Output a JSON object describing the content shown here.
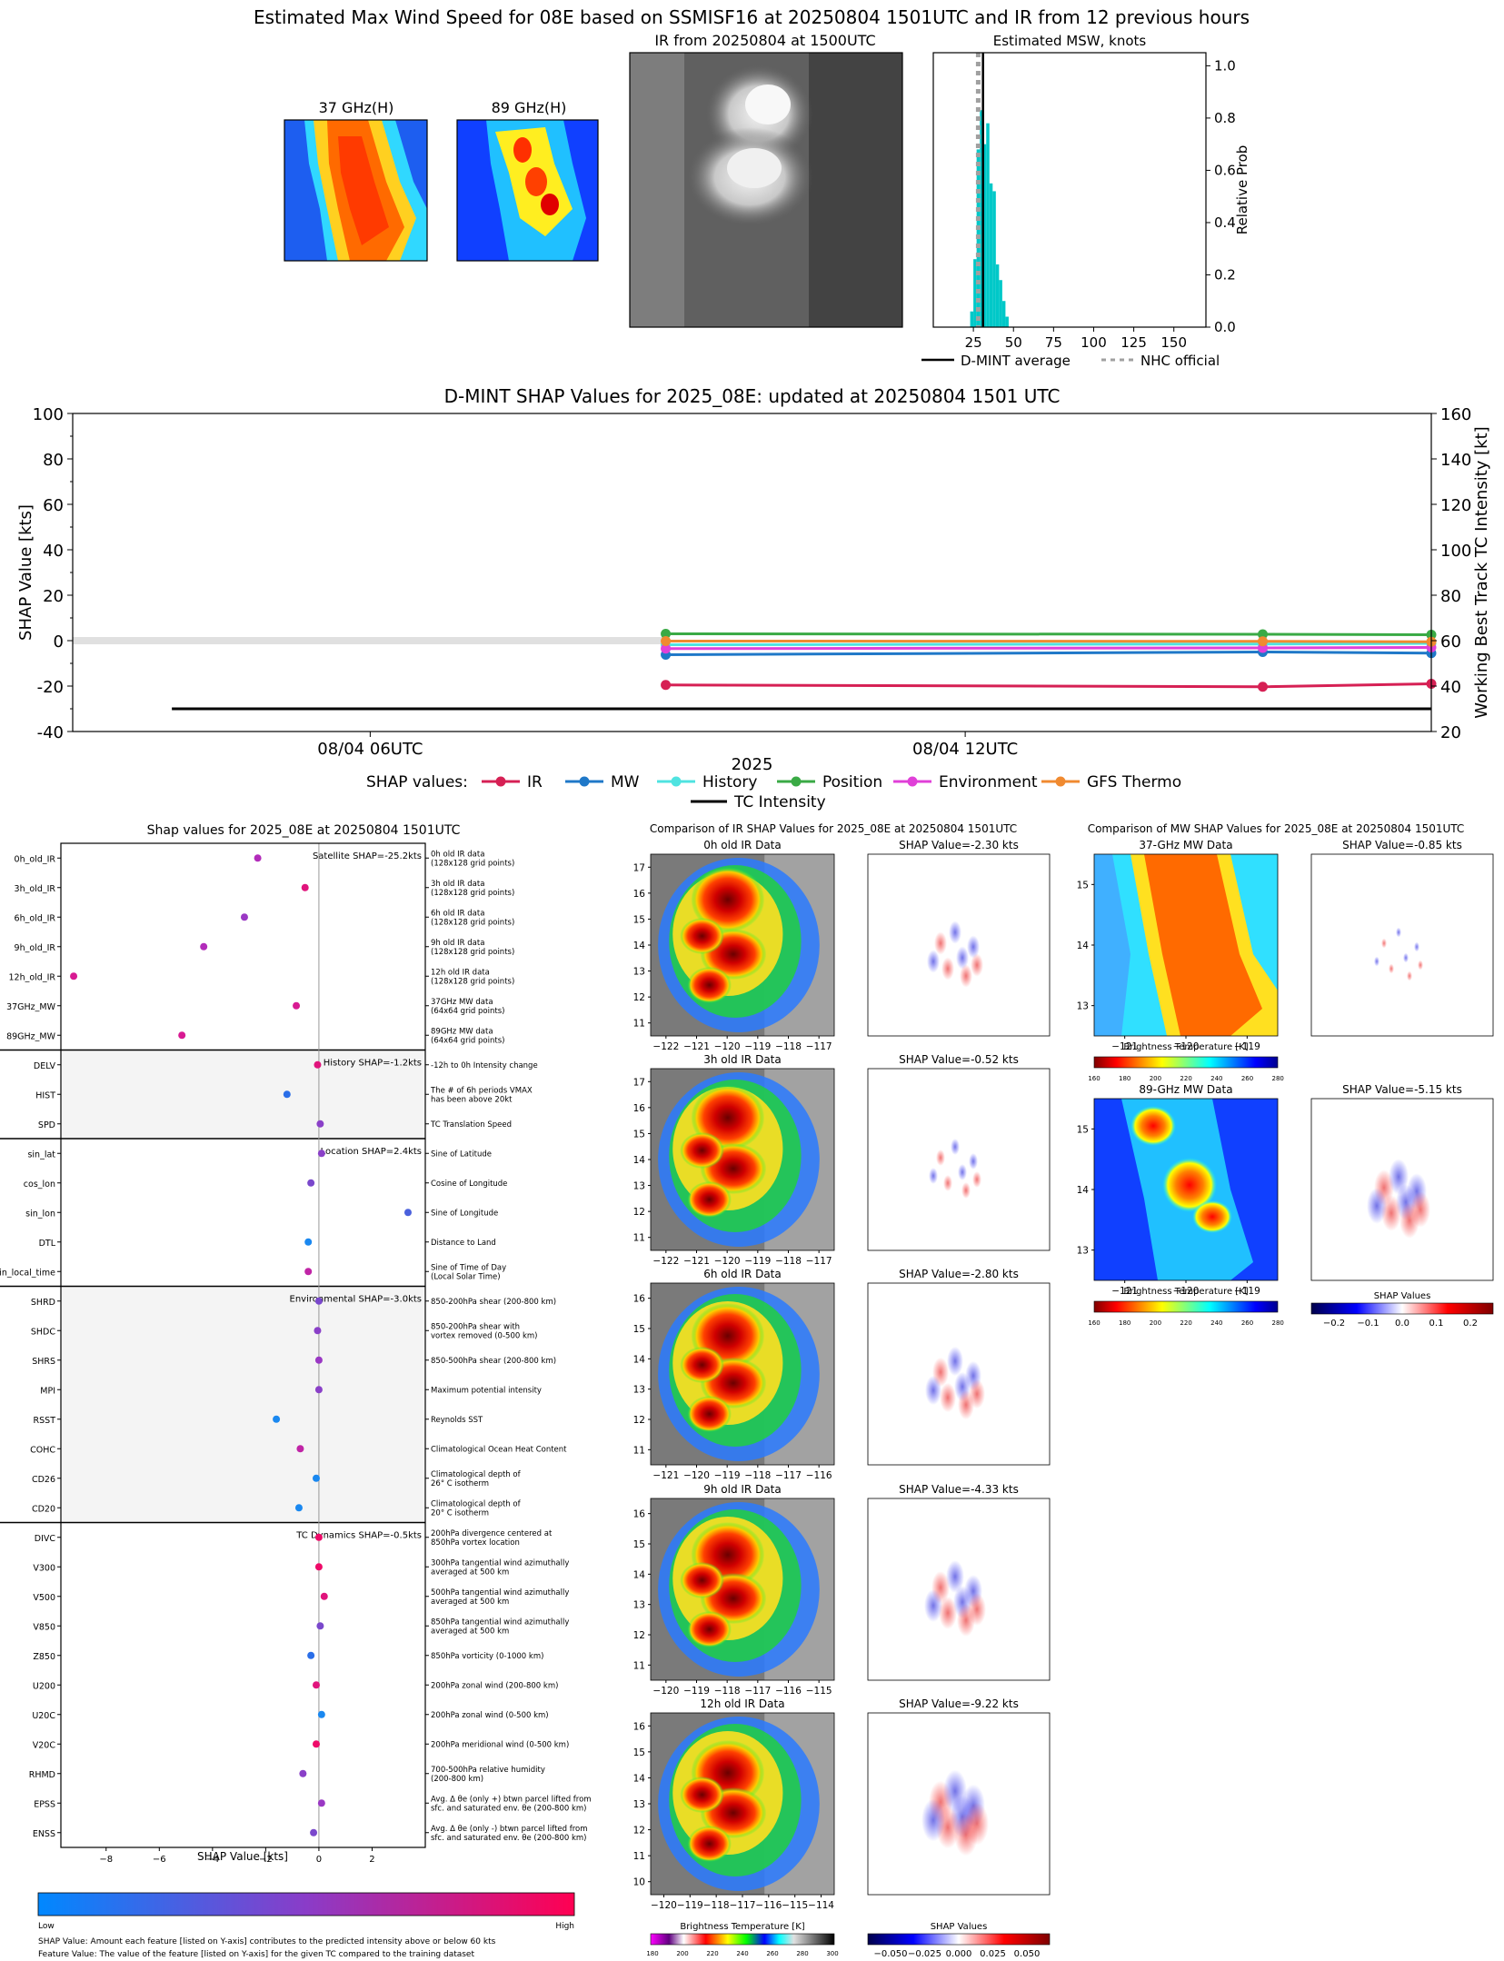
{
  "header": {
    "title": "Estimated Max Wind Speed for 08E based on SSMISF16 at 20250804 1501UTC and IR from 12 previous hours",
    "thumb_37_title": "37 GHz(H)",
    "thumb_89_title": "89 GHz(H)",
    "ir_title": "IR from 20250804 at 1500UTC",
    "hist_title": "Estimated MSW, knots",
    "hist_ylabel": "Relative Prob",
    "legend_dmint": "D-MINT average",
    "legend_nhc": "NHC official"
  },
  "colors": {
    "ir": "#d62054",
    "mw": "#1f78c8",
    "history": "#4fe3e0",
    "position": "#3aaa45",
    "environment": "#e040d8",
    "gfs_thermo": "#f08a30",
    "tc_intensity": "#000000",
    "hist_bar": "#00c8c8",
    "nhc": "#a0a0a0"
  },
  "chart_data": [
    {
      "id": "msw_histogram",
      "type": "bar",
      "title": "Estimated MSW, knots",
      "xlabel": "",
      "ylabel": "Relative Prob",
      "xlim": [
        0,
        170
      ],
      "ylim": [
        0,
        1.05
      ],
      "xticks": [
        25,
        50,
        75,
        100,
        125,
        150
      ],
      "yticks": [
        "0.0",
        "0.2",
        "0.4",
        "0.6",
        "0.8",
        "1.0"
      ],
      "bin_width": 2,
      "bins": [
        {
          "x": 24,
          "y": 0.06
        },
        {
          "x": 26,
          "y": 0.26
        },
        {
          "x": 28,
          "y": 0.68
        },
        {
          "x": 30,
          "y": 0.83
        },
        {
          "x": 32,
          "y": 0.7
        },
        {
          "x": 34,
          "y": 0.78
        },
        {
          "x": 36,
          "y": 0.55
        },
        {
          "x": 38,
          "y": 0.52
        },
        {
          "x": 40,
          "y": 0.24
        },
        {
          "x": 42,
          "y": 0.18
        },
        {
          "x": 44,
          "y": 0.1
        },
        {
          "x": 46,
          "y": 0.04
        }
      ],
      "dmint_average": 31,
      "nhc_official": 28,
      "legend": [
        "D-MINT average",
        "NHC official"
      ]
    },
    {
      "id": "shap_timeseries",
      "type": "line",
      "title": "D-MINT SHAP Values for 2025_08E: updated at 20250804 1501 UTC",
      "xlabel": "2025",
      "ylabel": "SHAP Value [kts]",
      "ylabel_right": "Working Best Track TC Intensity [kt]",
      "x_range_hours": [
        3.0,
        16.7
      ],
      "xtick_labels": [
        {
          "h": 6,
          "label": "08/04 06UTC"
        },
        {
          "h": 12,
          "label": "08/04 12UTC"
        }
      ],
      "ylim": [
        -40,
        100
      ],
      "yticks": [
        -40,
        -20,
        0,
        20,
        40,
        60,
        80,
        100
      ],
      "ylim_right": [
        20,
        160
      ],
      "yticks_right": [
        20,
        40,
        60,
        80,
        100,
        120,
        140,
        160
      ],
      "legend_prefix": "SHAP values:",
      "series": [
        {
          "name": "IR",
          "color_key": "ir",
          "x": [
            8.98,
            15.0,
            16.7
          ],
          "y": [
            -19.5,
            -20.3,
            -19.0
          ]
        },
        {
          "name": "MW",
          "color_key": "mw",
          "x": [
            8.98,
            15.0,
            16.7
          ],
          "y": [
            -6.2,
            -5.0,
            -5.5
          ]
        },
        {
          "name": "History",
          "color_key": "history",
          "x": [
            8.98,
            15.0,
            16.7
          ],
          "y": [
            -1.8,
            -1.5,
            -1.2
          ]
        },
        {
          "name": "Position",
          "color_key": "position",
          "x": [
            8.98,
            15.0,
            16.7
          ],
          "y": [
            3.0,
            2.8,
            2.6
          ]
        },
        {
          "name": "Environment",
          "color_key": "environment",
          "x": [
            8.98,
            15.0,
            16.7
          ],
          "y": [
            -3.5,
            -3.2,
            -3.0
          ]
        },
        {
          "name": "GFS Thermo",
          "color_key": "gfs_thermo",
          "x": [
            8.98,
            15.0,
            16.7
          ],
          "y": [
            -0.2,
            -0.3,
            -0.5
          ]
        }
      ],
      "tc_intensity": {
        "name": "TC Intensity",
        "x": [
          4.0,
          16.7
        ],
        "y": [
          30,
          30
        ]
      },
      "zero_band": {
        "x": [
          3.0,
          8.98
        ],
        "y": 0
      }
    },
    {
      "id": "shap_features",
      "type": "scatter",
      "title": "Shap values for 2025_08E at 20250804 1501UTC",
      "xlabel": "SHAP Value [kts]",
      "xlim": [
        -9.7,
        4.0
      ],
      "xticks": [
        -8,
        -6,
        -4,
        -2,
        0,
        2
      ],
      "colorbar_low": "Low",
      "colorbar_high": "High",
      "groups": [
        {
          "label": "Satellite SHAP=-25.2kts",
          "shaded": false,
          "start": 0,
          "end": 7
        },
        {
          "label": "History SHAP=-1.2kts",
          "shaded": true,
          "start": 7,
          "end": 10
        },
        {
          "label": "Location SHAP=2.4kts",
          "shaded": false,
          "start": 10,
          "end": 15
        },
        {
          "label": "Environmental SHAP=-3.0kts",
          "shaded": true,
          "start": 15,
          "end": 23
        },
        {
          "label": "TC Dynamics SHAP=-0.5kts",
          "shaded": false,
          "start": 23,
          "end": 34
        }
      ],
      "features": [
        {
          "name": "0h_old_IR",
          "value": -2.3,
          "color": "#b22cba",
          "desc": [
            "0h old IR data",
            "(128x128 grid points)"
          ]
        },
        {
          "name": "3h_old_IR",
          "value": -0.52,
          "color": "#e0147c",
          "desc": [
            "3h old IR data",
            "(128x128 grid points)"
          ]
        },
        {
          "name": "6h_old_IR",
          "value": -2.8,
          "color": "#9a38c4",
          "desc": [
            "6h old IR data",
            "(128x128 grid points)"
          ]
        },
        {
          "name": "9h_old_IR",
          "value": -4.33,
          "color": "#b22cba",
          "desc": [
            "9h old IR data",
            "(128x128 grid points)"
          ]
        },
        {
          "name": "12h_old_IR",
          "value": -9.22,
          "color": "#d81a92",
          "desc": [
            "12h old IR data",
            "(128x128 grid points)"
          ]
        },
        {
          "name": "37GHz_MW",
          "value": -0.85,
          "color": "#d81a92",
          "desc": [
            "37GHz MW data",
            "(64x64 grid points)"
          ]
        },
        {
          "name": "89GHz_MW",
          "value": -5.15,
          "color": "#d81a92",
          "desc": [
            "89GHz MW data",
            "(64x64 grid points)"
          ]
        },
        {
          "name": "DELV",
          "value": -0.05,
          "color": "#e0147c",
          "desc": [
            "-12h to 0h Intensity change"
          ]
        },
        {
          "name": "HIST",
          "value": -1.2,
          "color": "#2a6ee8",
          "desc": [
            "The # of 6h periods VMAX",
            "has been above 20kt"
          ]
        },
        {
          "name": "SPD",
          "value": 0.05,
          "color": "#8a40c8",
          "desc": [
            "TC Translation Speed"
          ]
        },
        {
          "name": "sin_lat",
          "value": 0.1,
          "color": "#8a40c8",
          "desc": [
            "Sine of Latitude"
          ]
        },
        {
          "name": "cos_lon",
          "value": -0.3,
          "color": "#7a48cc",
          "desc": [
            "Cosine of Longitude"
          ]
        },
        {
          "name": "sin_lon",
          "value": 3.35,
          "color": "#4a60dc",
          "desc": [
            "Sine of Longitude"
          ]
        },
        {
          "name": "DTL",
          "value": -0.4,
          "color": "#1a88f0",
          "desc": [
            "Distance to Land"
          ]
        },
        {
          "name": "sin_local_time",
          "value": -0.4,
          "color": "#c024a6",
          "desc": [
            "Sine of Time of Day",
            "(Local Solar Time)"
          ]
        },
        {
          "name": "SHRD",
          "value": 0.0,
          "color": "#7a48cc",
          "desc": [
            "850-200hPa shear (200-800 km)"
          ]
        },
        {
          "name": "SHDC",
          "value": -0.05,
          "color": "#8a40c8",
          "desc": [
            "850-200hPa shear with",
            "vortex removed (0-500 km)"
          ]
        },
        {
          "name": "SHRS",
          "value": 0.0,
          "color": "#9a38c4",
          "desc": [
            "850-500hPa shear (200-800 km)"
          ]
        },
        {
          "name": "MPI",
          "value": 0.0,
          "color": "#8a40c8",
          "desc": [
            "Maximum potential intensity"
          ]
        },
        {
          "name": "RSST",
          "value": -1.6,
          "color": "#1a88f0",
          "desc": [
            "Reynolds SST"
          ]
        },
        {
          "name": "COHC",
          "value": -0.7,
          "color": "#c024a6",
          "desc": [
            "Climatological Ocean Heat Content"
          ]
        },
        {
          "name": "CD26",
          "value": -0.1,
          "color": "#1a88f0",
          "desc": [
            "Climatological depth of",
            "26° C isotherm"
          ]
        },
        {
          "name": "CD20",
          "value": -0.75,
          "color": "#1a88f0",
          "desc": [
            "Climatological depth of",
            "20° C isotherm"
          ]
        },
        {
          "name": "DIVC",
          "value": 0.0,
          "color": "#ee0a68",
          "desc": [
            "200hPa divergence centered at",
            "850hPa vortex location"
          ]
        },
        {
          "name": "V300",
          "value": 0.0,
          "color": "#ee0a68",
          "desc": [
            "300hPa tangential wind azimuthally",
            "averaged at 500 km"
          ]
        },
        {
          "name": "V500",
          "value": 0.2,
          "color": "#e0147c",
          "desc": [
            "500hPa tangential wind azimuthally",
            "averaged at 500 km"
          ]
        },
        {
          "name": "V850",
          "value": 0.05,
          "color": "#7a48cc",
          "desc": [
            "850hPa tangential wind azimuthally",
            "averaged at 500 km"
          ]
        },
        {
          "name": "Z850",
          "value": -0.3,
          "color": "#2a6ee8",
          "desc": [
            "850hPa vorticity (0-1000 km)"
          ]
        },
        {
          "name": "U200",
          "value": -0.1,
          "color": "#e0147c",
          "desc": [
            "200hPa zonal wind (200-800 km)"
          ]
        },
        {
          "name": "U20C",
          "value": 0.1,
          "color": "#1a88f0",
          "desc": [
            "200hPa zonal wind (0-500 km)"
          ]
        },
        {
          "name": "V20C",
          "value": -0.1,
          "color": "#ee0a68",
          "desc": [
            "200hPa meridional wind (0-500 km)"
          ]
        },
        {
          "name": "RHMD",
          "value": -0.6,
          "color": "#8a40c8",
          "desc": [
            "700-500hPa relative humidity",
            "(200-800 km)"
          ]
        },
        {
          "name": "EPSS",
          "value": 0.1,
          "color": "#9a38c4",
          "desc": [
            "Avg. Δ θe (only +) btwn parcel lifted from",
            "sfc. and saturated env. θe (200-800 km)"
          ]
        },
        {
          "name": "ENSS",
          "value": -0.2,
          "color": "#7a48cc",
          "desc": [
            "Avg. Δ θe (only -) btwn parcel lifted from",
            "sfc. and saturated env. θe (200-800 km)"
          ]
        }
      ],
      "footnote_1": "SHAP Value: Amount each feature [listed on Y-axis] contributes to the predicted intensity above or below 60 kts",
      "footnote_2": "Feature Value: The value of the feature [listed on Y-axis] for the given TC compared to the training dataset"
    },
    {
      "id": "ir_shap_comparison",
      "type": "heatmap",
      "title": "Comparison of IR SHAP Values for 2025_08E at 20250804 1501UTC",
      "panels": [
        {
          "title": "0h old IR Data",
          "shap_title": "SHAP Value=-2.30 kts",
          "xticks": [
            "−122",
            "−121",
            "−120",
            "−119",
            "−118",
            "−117"
          ],
          "yticks": [
            "17",
            "16",
            "15",
            "14",
            "13",
            "12",
            "11"
          ]
        },
        {
          "title": "3h old IR Data",
          "shap_title": "SHAP Value=-0.52 kts",
          "xticks": [
            "−122",
            "−121",
            "−120",
            "−119",
            "−118",
            "−117"
          ],
          "yticks": [
            "17",
            "16",
            "15",
            "14",
            "13",
            "12",
            "11"
          ]
        },
        {
          "title": "6h old IR Data",
          "shap_title": "SHAP Value=-2.80 kts",
          "xticks": [
            "−121",
            "−120",
            "−119",
            "−118",
            "−117",
            "−116"
          ],
          "yticks": [
            "16",
            "15",
            "14",
            "13",
            "12",
            "11"
          ]
        },
        {
          "title": "9h old IR Data",
          "shap_title": "SHAP Value=-4.33 kts",
          "xticks": [
            "−120",
            "−119",
            "−118",
            "−117",
            "−116",
            "−115"
          ],
          "yticks": [
            "16",
            "15",
            "14",
            "13",
            "12",
            "11"
          ]
        },
        {
          "title": "12h old IR Data",
          "shap_title": "SHAP Value=-9.22 kts",
          "xticks": [
            "−120",
            "−119",
            "−118",
            "−117",
            "−116",
            "−115",
            "−114"
          ],
          "yticks": [
            "16",
            "15",
            "14",
            "13",
            "12",
            "11",
            "10"
          ]
        }
      ],
      "cbar_bt_label": "Brightness Temperature [K]",
      "cbar_bt_ticks": [
        "180",
        "200",
        "220",
        "240",
        "260",
        "280",
        "300"
      ],
      "cbar_shap_label": "SHAP Values",
      "cbar_shap_ticks": [
        "−0.050",
        "−0.025",
        "0.000",
        "0.025",
        "0.050"
      ]
    },
    {
      "id": "mw_shap_comparison",
      "type": "heatmap",
      "title": "Comparison of MW SHAP Values for 2025_08E at 20250804 1501UTC",
      "panels": [
        {
          "title": "37-GHz MW Data",
          "shap_title": "SHAP Value=-0.85 kts",
          "xticks": [
            "−121",
            "−120",
            "−119"
          ],
          "yticks": [
            "15",
            "14",
            "13"
          ]
        },
        {
          "title": "89-GHz MW Data",
          "shap_title": "SHAP Value=-5.15 kts",
          "xticks": [
            "−121",
            "−120",
            "−119"
          ],
          "yticks": [
            "15",
            "14",
            "13"
          ]
        }
      ],
      "cbar_bt_label": "Brightness Temperature [K]",
      "cbar_bt_ticks": [
        "160",
        "180",
        "200",
        "220",
        "240",
        "260",
        "280"
      ],
      "cbar_shap_label": "SHAP Values",
      "cbar_shap_ticks": [
        "−0.2",
        "−0.1",
        "0.0",
        "0.1",
        "0.2"
      ]
    }
  ]
}
